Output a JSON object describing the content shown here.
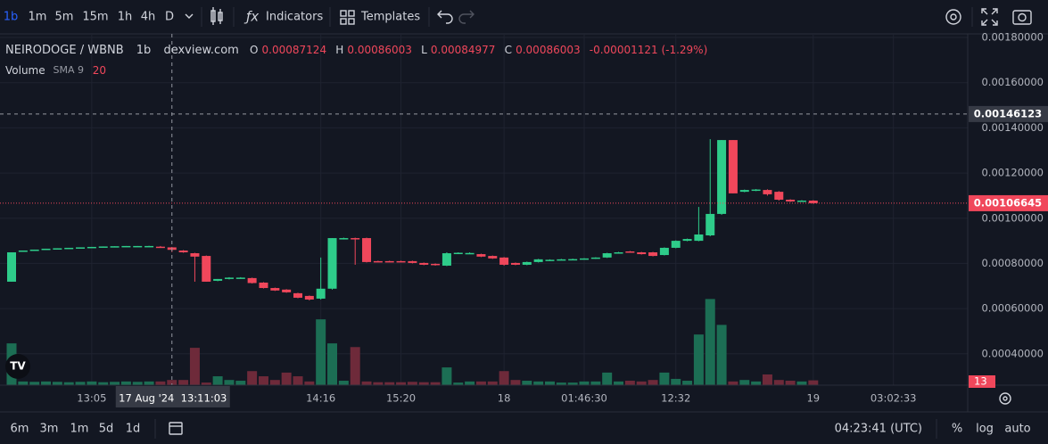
{
  "toolbar": {
    "intervals": [
      "1b",
      "1m",
      "5m",
      "15m",
      "1h",
      "4h",
      "D"
    ],
    "indicators": "Indicators",
    "templates": "Templates"
  },
  "bottom_bar": {
    "ranges": [
      "6m",
      "3m",
      "1m",
      "5d",
      "1d"
    ],
    "clock": "04:23:41 (UTC)",
    "percent": "%",
    "log": "log",
    "auto": "auto"
  },
  "chart_data": {
    "type": "candlestick",
    "title": "NEIRODOGE / WBNB",
    "interval": "1b",
    "source": "dexview.com",
    "legend": {
      "o_label": "O",
      "open": 0.00087124,
      "h_label": "H",
      "high": 0.00086003,
      "l_label": "L",
      "low": 0.00084977,
      "c_label": "C",
      "close": 0.00086003,
      "change": "-0.00001121 (-1.29%)"
    },
    "categories": [
      null,
      null,
      null,
      null,
      null,
      null,
      null,
      "13:05",
      null,
      null,
      null,
      null,
      null,
      null,
      null,
      null,
      null,
      null,
      null,
      null,
      null,
      null,
      null,
      null,
      null,
      null,
      null,
      "14:16",
      null,
      null,
      null,
      null,
      null,
      null,
      "15:20",
      null,
      null,
      null,
      null,
      null,
      null,
      null,
      null,
      "18",
      null,
      null,
      null,
      null,
      null,
      null,
      "01:46:30",
      null,
      null,
      null,
      null,
      null,
      null,
      null,
      "12:32",
      null,
      null,
      null,
      null,
      null,
      null,
      null,
      null,
      null,
      null,
      null,
      "19",
      null,
      null,
      null,
      null,
      null,
      null,
      "03:02:33",
      null
    ],
    "open": [
      0.000719,
      0.000853,
      0.000857,
      0.000861,
      0.000865,
      0.000867,
      0.000869,
      0.000871,
      0.000873,
      0.000875,
      0.000876,
      0.000876,
      0.000877,
      0.000874,
      0.000871,
      0.000857,
      0.000845,
      0.000833,
      0.000723,
      0.000731,
      0.000735,
      0.000735,
      0.000715,
      0.000691,
      0.000684,
      0.000668,
      0.000656,
      0.000644,
      0.000688,
      0.000908,
      0.000912,
      0.000912,
      0.00081,
      0.00081,
      0.00081,
      0.00081,
      0.000802,
      0.000798,
      0.00079,
      0.000845,
      0.000845,
      0.000841,
      0.000833,
      0.000826,
      0.000802,
      0.000794,
      0.000806,
      0.000814,
      0.000816,
      0.000818,
      0.000819,
      0.000822,
      0.000826,
      0.000845,
      0.000853,
      0.000849,
      0.000849,
      0.000837,
      0.000869,
      0.0009,
      0.0009,
      0.000924,
      0.001019,
      0.001346,
      0.001117,
      0.001125,
      0.001125,
      0.001117,
      0.001082,
      0.001078,
      0.001078,
      null,
      null,
      null,
      null,
      null,
      null,
      null,
      null
    ],
    "high": [
      0.000849,
      0.000857,
      0.000861,
      0.000865,
      0.000867,
      0.000869,
      0.000871,
      0.000873,
      0.000875,
      0.000876,
      0.000877,
      0.000877,
      0.000878,
      0.000877,
      0.000873,
      0.000859,
      0.000847,
      0.000835,
      0.000731,
      0.000739,
      0.000739,
      0.000737,
      0.000717,
      0.000693,
      0.000686,
      0.00067,
      0.000658,
      0.000826,
      0.000912,
      0.000914,
      0.000914,
      0.000914,
      0.000812,
      0.000812,
      0.000812,
      0.000812,
      0.000804,
      0.0008,
      0.000849,
      0.000849,
      0.000849,
      0.000843,
      0.000835,
      0.000828,
      0.000804,
      0.000808,
      0.00082,
      0.000818,
      0.00082,
      0.000821,
      0.000823,
      0.000827,
      0.000847,
      0.000851,
      0.000855,
      0.000851,
      0.000851,
      0.000871,
      0.000902,
      0.00091,
      0.00105,
      0.00135,
      0.001346,
      0.001346,
      0.001127,
      0.001129,
      0.001128,
      0.00112,
      0.001084,
      0.00108,
      0.00108,
      null,
      null,
      null,
      null,
      null,
      null,
      null,
      null
    ],
    "low": [
      0.000719,
      0.000853,
      0.000857,
      0.000861,
      0.000865,
      0.000867,
      0.000869,
      0.000871,
      0.000873,
      0.000875,
      0.000876,
      0.000876,
      0.000876,
      0.000872,
      0.00085,
      0.000847,
      0.000719,
      0.000719,
      0.000721,
      0.000729,
      0.000733,
      0.000711,
      0.000689,
      0.000678,
      0.00067,
      0.000646,
      0.000636,
      0.00064,
      0.000684,
      0.000906,
      0.000794,
      0.000804,
      0.000806,
      0.000806,
      0.000806,
      0.0008,
      0.000792,
      0.00079,
      0.000788,
      0.000843,
      0.000843,
      0.000828,
      0.00082,
      0.00079,
      0.000792,
      0.000792,
      0.000804,
      0.000812,
      0.000814,
      0.000816,
      0.000817,
      0.00082,
      0.000824,
      0.000843,
      0.000847,
      0.000839,
      0.000831,
      0.000835,
      0.000867,
      0.000898,
      0.000898,
      0.00092,
      0.001015,
      0.00111,
      0.001115,
      0.00112,
      0.0011,
      0.001078,
      0.001072,
      0.001076,
      0.001064,
      null,
      null,
      null,
      null,
      null,
      null,
      null,
      null
    ],
    "close": [
      0.000849,
      0.000857,
      0.000861,
      0.000865,
      0.000867,
      0.000869,
      0.000871,
      0.000873,
      0.000875,
      0.000876,
      0.000877,
      0.000877,
      0.000877,
      0.000873,
      0.00086,
      0.000849,
      0.00083,
      0.000719,
      0.000731,
      0.000737,
      0.000737,
      0.000713,
      0.000691,
      0.00068,
      0.000672,
      0.000648,
      0.00064,
      0.000688,
      0.000912,
      0.000912,
      0.000908,
      0.000806,
      0.000808,
      0.000809,
      0.000808,
      0.000802,
      0.000794,
      0.000794,
      0.000845,
      0.000847,
      0.000846,
      0.00083,
      0.000822,
      0.000794,
      0.000794,
      0.000806,
      0.000818,
      0.000816,
      0.000818,
      0.000819,
      0.000822,
      0.000826,
      0.000845,
      0.000849,
      0.000849,
      0.000841,
      0.000833,
      0.000869,
      0.0009,
      0.000908,
      0.000928,
      0.001019,
      0.001346,
      0.00111,
      0.001125,
      0.001127,
      0.001106,
      0.001082,
      0.001074,
      0.001078,
      0.00106645,
      null,
      null,
      null,
      null,
      null,
      null,
      null,
      null
    ],
    "up_color": "#2ecc8a",
    "down_color": "#f0475b",
    "ylim": [
      0.000261,
      0.001816
    ],
    "yticks": [
      {
        "value": 0.0004,
        "label": "0.00040000"
      },
      {
        "value": 0.0006,
        "label": "0.00060000"
      },
      {
        "value": 0.0008,
        "label": "0.00080000"
      },
      {
        "value": 0.001,
        "label": "0.00100000"
      },
      {
        "value": 0.0012,
        "label": "0.00120000"
      },
      {
        "value": 0.0014,
        "label": "0.00140000"
      },
      {
        "value": 0.0016,
        "label": "0.00160000"
      },
      {
        "value": 0.0018,
        "label": "0.00180000"
      }
    ],
    "grid": true,
    "volume": {
      "name": "Volume",
      "sma_label": "SMA 9",
      "sma_value": 20,
      "up_color": "#1c6e54",
      "down_color": "#6e2a3a",
      "vlim": [
        0,
        950
      ],
      "values": [
        113,
        10,
        9,
        10,
        9,
        8,
        9,
        10,
        8,
        9,
        10,
        9,
        10,
        10,
        14,
        14,
        101,
        7,
        24,
        14,
        12,
        38,
        24,
        14,
        34,
        24,
        10,
        178,
        113,
        12,
        103,
        10,
        8,
        8,
        8,
        9,
        8,
        8,
        48,
        7,
        10,
        10,
        10,
        38,
        14,
        12,
        10,
        10,
        7,
        7,
        10,
        10,
        34,
        10,
        12,
        10,
        14,
        34,
        17,
        12,
        137,
        233,
        163,
        10,
        14,
        10,
        29,
        14,
        12,
        10,
        13,
        null,
        null,
        null,
        null,
        null,
        null,
        null,
        null
      ]
    },
    "crosshair": {
      "time_label": "17 Aug '24  13:11:03",
      "price": 0.00146123
    }
  }
}
